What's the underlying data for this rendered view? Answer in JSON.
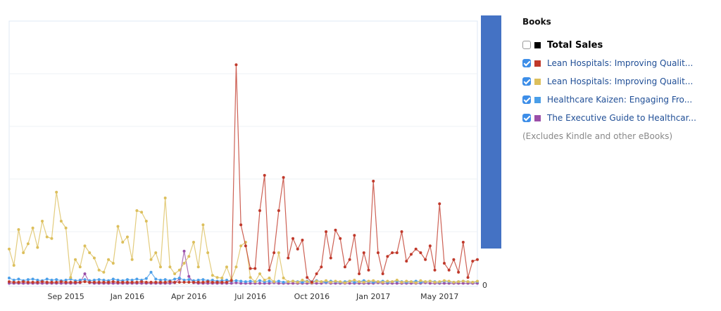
{
  "chart_data": {
    "type": "line",
    "categories": [
      null,
      null,
      null,
      null,
      null,
      null,
      null,
      null,
      null,
      null,
      null,
      null,
      "Sep 2015",
      null,
      null,
      null,
      null,
      null,
      null,
      null,
      null,
      null,
      null,
      null,
      null,
      "Jan 2016",
      null,
      null,
      null,
      null,
      null,
      null,
      null,
      null,
      null,
      null,
      null,
      null,
      "Apr 2016",
      null,
      null,
      null,
      null,
      null,
      null,
      null,
      null,
      null,
      null,
      null,
      null,
      "Jul 2016",
      null,
      null,
      null,
      null,
      null,
      null,
      null,
      null,
      null,
      null,
      null,
      null,
      "Oct 2016",
      null,
      null,
      null,
      null,
      null,
      null,
      null,
      null,
      null,
      null,
      null,
      null,
      "Jan 2017",
      null,
      null,
      null,
      null,
      null,
      null,
      null,
      null,
      null,
      null,
      null,
      null,
      null,
      "May 2017",
      null,
      null,
      null,
      null,
      null,
      null,
      null,
      null
    ],
    "ylim": [
      0,
      50
    ],
    "yticks": [
      0
    ],
    "legend": {
      "title": "Books",
      "note": "(Excludes Kindle and other eBooks)",
      "total": {
        "name": "Total Sales",
        "color": "#000000",
        "checked": false
      }
    },
    "series": [
      {
        "name": "Lean Hospitals: Improving Qualit...",
        "color": "#c0392b",
        "checked": true,
        "values": [
          0.5,
          0.4,
          0.4,
          0.5,
          0.4,
          0.4,
          0.4,
          0.5,
          0.4,
          0.4,
          0.4,
          0.5,
          0.4,
          0.4,
          0.4,
          0.4,
          0.5,
          0.4,
          0.4,
          0.4,
          0.4,
          0.4,
          0.5,
          0.4,
          0.4,
          0.4,
          0.4,
          0.4,
          0.5,
          0.4,
          0.4,
          0.4,
          0.4,
          0.4,
          0.5,
          0.4,
          0.4,
          0.4,
          0.4,
          0.4,
          0.4,
          0.4,
          0.5,
          0.4,
          0.4,
          0.4,
          0.4,
          0.7,
          41.7,
          11.3,
          7.3,
          3,
          3,
          14,
          20.7,
          2.7,
          6,
          14,
          20.3,
          5,
          8.7,
          6.7,
          8.4,
          1.3,
          0.4,
          2,
          3.3,
          10,
          5,
          10.3,
          8.7,
          3.3,
          4.7,
          9.3,
          2,
          6,
          2.7,
          19.6,
          6,
          2,
          5.3,
          6,
          6,
          10,
          4.4,
          5.7,
          6.7,
          6,
          4.7,
          7.3,
          2.7,
          15.3,
          4,
          2.7,
          4.7,
          2.3,
          8,
          1.3,
          4.4,
          4.7
        ]
      },
      {
        "name": "Lean Hospitals: Improving Qualit...",
        "color": "#dcbf5c",
        "checked": true,
        "values": [
          6.7,
          3.6,
          10.4,
          6,
          7.7,
          10.7,
          7,
          12,
          9,
          8.7,
          17.5,
          12,
          10.7,
          1.3,
          4.7,
          3.3,
          7.3,
          6,
          5,
          2.7,
          2.3,
          4.7,
          4,
          11,
          8,
          9,
          4.7,
          14,
          13.7,
          12,
          4.7,
          6,
          3.3,
          16.4,
          3.3,
          2,
          2.7,
          4,
          5.3,
          8,
          3.3,
          11.3,
          6,
          1.7,
          1.3,
          1.2,
          3.3,
          0.9,
          3.3,
          7.3,
          8,
          1.3,
          0.5,
          2,
          0.8,
          1.2,
          0.5,
          6,
          1.2,
          0.5,
          0.6,
          0.4,
          0.8,
          0.5,
          0.3,
          0.6,
          0.5,
          0.7,
          0.4,
          0.6,
          0.5,
          0.3,
          0.6,
          0.8,
          0.5,
          0.4,
          0.6,
          0.7,
          0.5,
          0.4,
          0.6,
          0.5,
          0.8,
          0.4,
          0.6,
          0.5,
          0.3,
          0.7,
          0.5,
          0.6,
          0.4,
          0.5,
          0.7,
          0.6,
          0.4,
          0.5,
          0.6,
          0.5,
          0.4,
          0.6
        ]
      },
      {
        "name": "Healthcare Kaizen: Engaging Fro...",
        "color": "#4a9ee8",
        "checked": true,
        "values": [
          1.2,
          0.8,
          1,
          0.7,
          0.9,
          1,
          0.8,
          0.7,
          1,
          0.8,
          0.9,
          0.7,
          0.8,
          1,
          0.7,
          0.8,
          0.9,
          0.7,
          0.8,
          0.9,
          0.8,
          0.7,
          1,
          0.8,
          0.7,
          0.9,
          0.8,
          1,
          0.8,
          1.1,
          2.3,
          1,
          0.8,
          0.9,
          0.7,
          1,
          1.2,
          0.8,
          0.9,
          0.7,
          0.8,
          0.9,
          0.7,
          0.8,
          0.6,
          0.7,
          0.8,
          0.6,
          0.7,
          0.6,
          0.5,
          0.6,
          0.5,
          0.7,
          0.5,
          0.6,
          0.5,
          0.6,
          0.4,
          0.5,
          0.6,
          0.5,
          0.4,
          0.6,
          0.5,
          0.7,
          0.5,
          0.4,
          0.6,
          0.5,
          0.4,
          0.5,
          0.6,
          0.4,
          0.5,
          0.7,
          0.5,
          0.4,
          0.5,
          0.6,
          0.4,
          0.5,
          0.6,
          0.5,
          0.4,
          0.5,
          0.6,
          0.4,
          0.5,
          0.6,
          0.5,
          0.4,
          0.6,
          0.5,
          0.4,
          0.5,
          0.6,
          0.5,
          0.4,
          0.5
        ]
      },
      {
        "name": "The Executive Guide to Healthcar...",
        "color": "#9b4fa8",
        "checked": true,
        "values": [
          0.2,
          0.2,
          0.2,
          0.2,
          0.2,
          0.2,
          0.2,
          0.2,
          0.2,
          0.2,
          0.2,
          0.2,
          0.2,
          0.2,
          0.2,
          0.3,
          2,
          0.3,
          0.2,
          0.2,
          0.2,
          0.2,
          0.2,
          0.2,
          0.2,
          0.2,
          0.2,
          0.2,
          0.2,
          0.2,
          0.2,
          0.2,
          0.2,
          0.2,
          0.2,
          0.3,
          1,
          6.3,
          1.5,
          0.3,
          0.2,
          0.2,
          0.2,
          0.2,
          0.2,
          0.2,
          0.2,
          0.2,
          0.3,
          0.2,
          0.2,
          0.2,
          0.2,
          0.2,
          0.2,
          0.2,
          0.3,
          0.2,
          0.2,
          0.2,
          0.2,
          0.2,
          0.2,
          0.2,
          0.2,
          0.2,
          0.2,
          0.3,
          0.2,
          0.2,
          0.2,
          0.2,
          0.2,
          0.2,
          0.2,
          0.2,
          0.2,
          0.2,
          0.3,
          0.2,
          0.2,
          0.2,
          0.2,
          0.2,
          0.2,
          0.2,
          0.2,
          0.2,
          0.3,
          0.2,
          0.2,
          0.2,
          0.2,
          0.2,
          0.2,
          0.2,
          0.2,
          0.2,
          0.2,
          0.2
        ]
      }
    ]
  }
}
